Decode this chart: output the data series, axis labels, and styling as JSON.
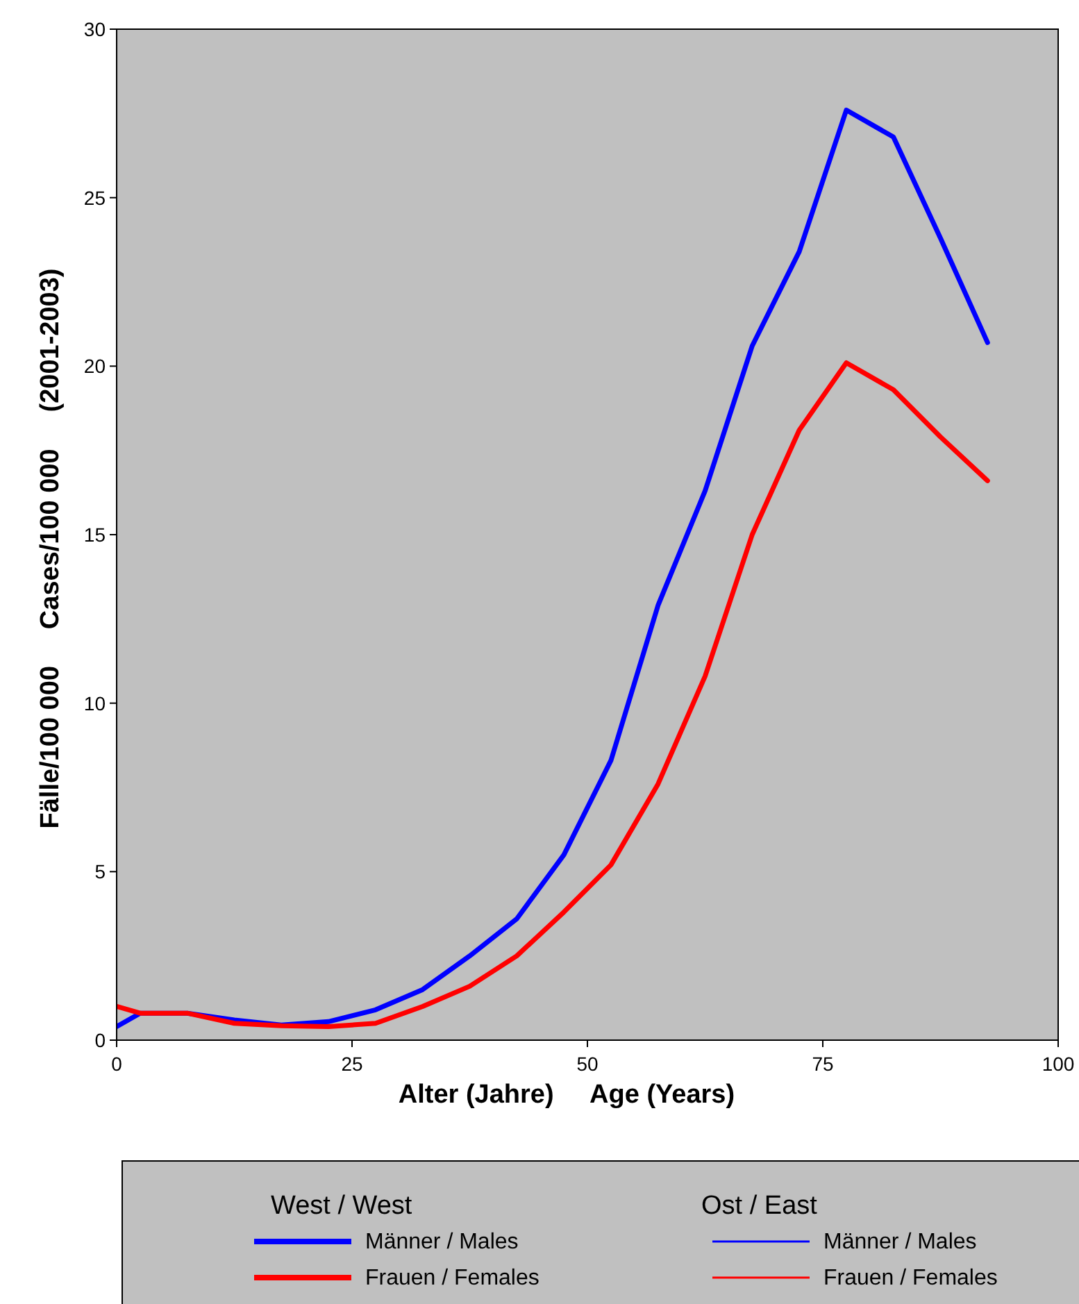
{
  "chart_data": {
    "type": "line",
    "xlabel": "Alter (Jahre)     Age (Years)",
    "ylabel": "Fälle/100 000     Cases/100 000     (2001-2003)",
    "x": [
      0,
      2.5,
      7.5,
      12.5,
      17.5,
      22.5,
      27.5,
      32.5,
      37.5,
      42.5,
      47.5,
      52.5,
      57.5,
      62.5,
      67.5,
      72.5,
      77.5,
      82.5,
      87.5,
      92.5
    ],
    "series": [
      {
        "name": "Männer / Males",
        "color": "#0000ff",
        "values": [
          0.4,
          0.8,
          0.8,
          0.6,
          0.45,
          0.55,
          0.9,
          1.5,
          2.5,
          3.6,
          5.5,
          8.3,
          12.9,
          16.3,
          20.6,
          23.4,
          27.6,
          26.8,
          23.8,
          20.7
        ]
      },
      {
        "name": "Frauen / Females",
        "color": "#ff0000",
        "values": [
          1.0,
          0.8,
          0.8,
          0.5,
          0.43,
          0.4,
          0.5,
          1.0,
          1.6,
          2.5,
          3.8,
          5.2,
          7.6,
          10.8,
          15.0,
          18.1,
          20.1,
          19.3,
          17.9,
          16.6
        ]
      },
      {
        "name": "Männer / Males",
        "color": "#0000ff",
        "values": [
          null,
          null,
          null,
          null,
          null,
          null,
          null,
          null,
          null,
          null,
          null,
          null,
          null,
          null,
          null,
          null,
          null,
          null,
          null,
          null
        ]
      },
      {
        "name": "Frauen / Females",
        "color": "#ff0000",
        "values": [
          null,
          null,
          null,
          null,
          null,
          null,
          null,
          null,
          null,
          null,
          null,
          null,
          null,
          null,
          null,
          null,
          null,
          null,
          null,
          null
        ]
      }
    ],
    "annotations": [
      "West / West",
      "Ost / East"
    ],
    "xlim": [
      0,
      100
    ],
    "xticks": [
      0,
      25,
      50,
      75,
      100
    ],
    "ylim": [
      0,
      30
    ],
    "yticks": [
      0,
      5,
      10,
      15,
      20,
      25,
      30
    ],
    "legend": "bottom",
    "grid": false,
    "marker": "none",
    "line_style": "solid"
  }
}
